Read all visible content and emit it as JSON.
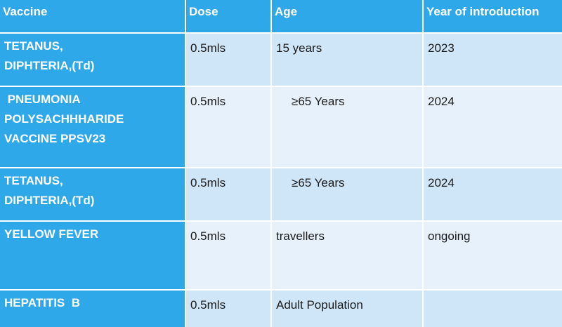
{
  "table": {
    "headers": [
      "Vaccine",
      "Dose",
      "Age",
      "Year of introduction"
    ],
    "rows": [
      {
        "vaccine_lines": [
          "TETANUS,",
          "DIPHTERIA,(Td)"
        ],
        "dose": "0.5mls",
        "age": "15 years",
        "year": "2023"
      },
      {
        "vaccine_lines": [
          " PNEUMONIA",
          "POLYSACHHHARIDE",
          "VACCINE PPSV23"
        ],
        "dose": "0.5mls",
        "age": "≥65 Years",
        "year": "2024"
      },
      {
        "vaccine_lines": [
          "TETANUS,",
          "DIPHTERIA,(Td)"
        ],
        "dose": "0.5mls",
        "age": "≥65 Years",
        "year": "2024"
      },
      {
        "vaccine_lines": [
          "YELLOW FEVER"
        ],
        "dose": "0.5mls",
        "age": "travellers",
        "year": "ongoing"
      },
      {
        "vaccine_lines": [
          "HEPATITIS  B"
        ],
        "dose": "0.5mls",
        "age": "Adult Population",
        "year": ""
      }
    ]
  },
  "colors": {
    "header_blue": "#2ea8e8",
    "row_light": "#e6f1fb",
    "row_mid": "#cfe6f8"
  }
}
